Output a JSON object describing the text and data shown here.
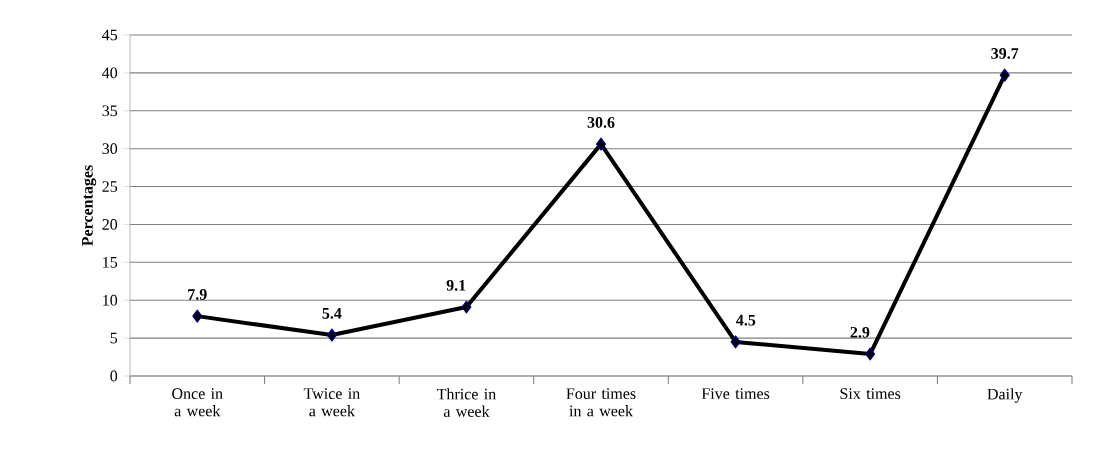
{
  "chart_data": {
    "type": "line",
    "ylabel": "Percentages",
    "categories": [
      "Once in a week",
      "Twice in a week",
      "Thrice in a week",
      "Four times in a week",
      "Five times",
      "Six times",
      "Daily"
    ],
    "values": [
      7.9,
      5.4,
      9.1,
      30.6,
      4.5,
      2.9,
      39.7
    ],
    "color": "#000000",
    "marker": "diamond",
    "data_labels": true,
    "grid": "y",
    "ylim": [
      0,
      45
    ],
    "yticks": [
      0,
      5,
      10,
      15,
      20,
      25,
      30,
      35,
      40,
      45
    ]
  }
}
